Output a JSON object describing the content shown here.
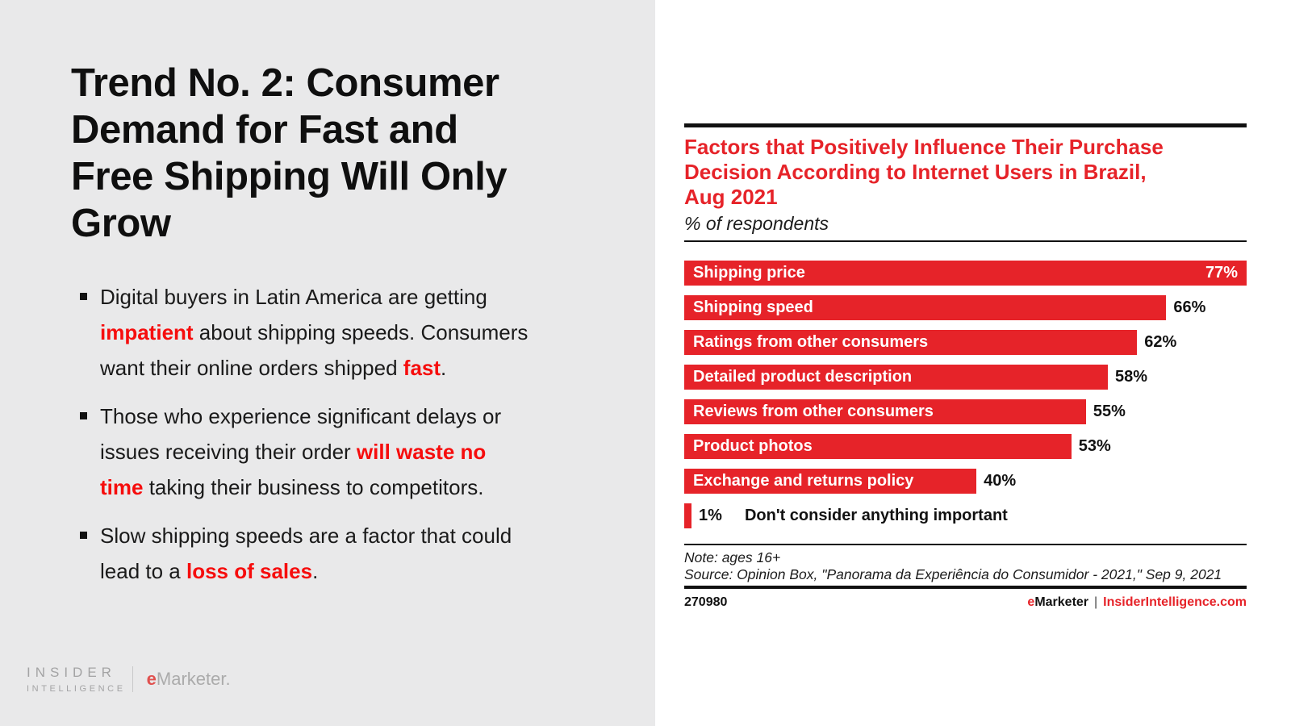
{
  "left": {
    "title_lines": [
      "Trend No. 2: Consumer",
      "Demand for Fast and",
      "Free Shipping Will Only",
      "Grow"
    ],
    "bullets": [
      {
        "lines": [
          [
            {
              "t": "Digital buyers in Latin America are getting"
            }
          ],
          [
            {
              "t": "impatient",
              "hl": true
            },
            {
              "t": " about shipping speeds. Consumers"
            }
          ],
          [
            {
              "t": "want their online orders shipped "
            },
            {
              "t": "fast",
              "hl": true
            },
            {
              "t": "."
            }
          ]
        ]
      },
      {
        "lines": [
          [
            {
              "t": "Those who experience significant delays or"
            }
          ],
          [
            {
              "t": "issues receiving their order "
            },
            {
              "t": "will waste no",
              "hl": true
            }
          ],
          [
            {
              "t": "time",
              "hl": true
            },
            {
              "t": " taking their business to competitors."
            }
          ]
        ]
      },
      {
        "lines": [
          [
            {
              "t": "Slow shipping speeds are a factor that could"
            }
          ],
          [
            {
              "t": "lead to a "
            },
            {
              "t": "loss of sales",
              "hl": true
            },
            {
              "t": "."
            }
          ]
        ]
      }
    ],
    "logo": {
      "line1": "INSIDER",
      "line2": "INTELLIGENCE",
      "brand_e": "e",
      "brand_rest": "Marketer."
    }
  },
  "chart_data": {
    "type": "bar",
    "orientation": "horizontal",
    "title": "Factors that Positively Influence Their Purchase Decision According to Internet Users in Brazil, Aug 2021",
    "title_lines": [
      "Factors that Positively Influence Their Purchase",
      "Decision According to Internet Users in Brazil,",
      "Aug 2021"
    ],
    "subtitle": "% of respondents",
    "categories": [
      "Shipping price",
      "Shipping speed",
      "Ratings from other consumers",
      "Detailed product description",
      "Reviews from other consumers",
      "Product photos",
      "Exchange and returns policy",
      "Don't consider anything important"
    ],
    "values": [
      77,
      66,
      62,
      58,
      55,
      53,
      40,
      1
    ],
    "unit": "%",
    "xlim": [
      0,
      77
    ],
    "grid": false,
    "legend": "none",
    "bar_color": "#e62329",
    "note": "Note: ages 16+",
    "source": "Source: Opinion Box, \"Panorama da Experiência do Consumidor - 2021,\" Sep 9, 2021",
    "chart_id": "270980",
    "footer_brand_e": "e",
    "footer_brand_rest": "Marketer",
    "footer_sep": "|",
    "footer_site": "InsiderIntelligence.com"
  }
}
